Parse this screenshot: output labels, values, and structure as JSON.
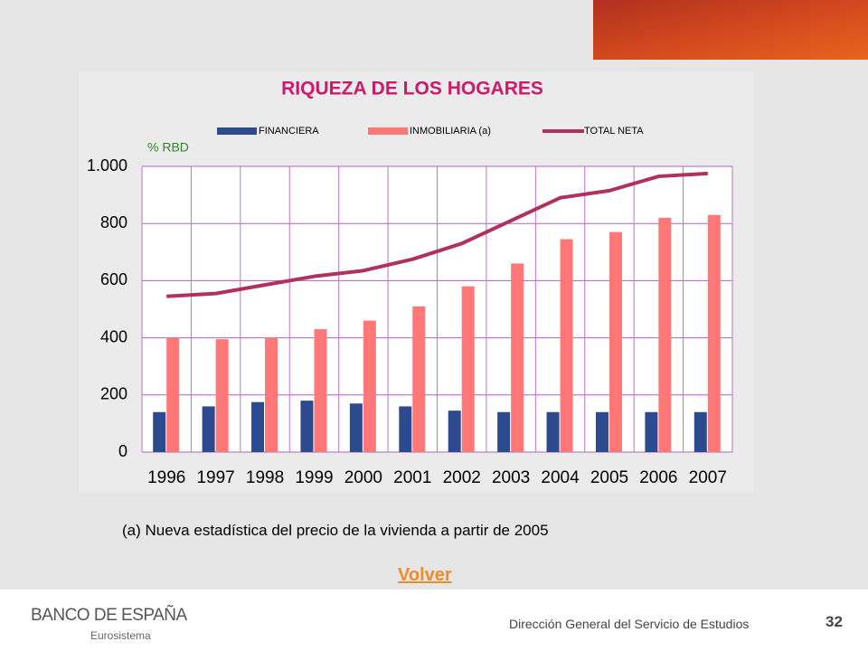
{
  "chart_data": {
    "type": "bar_line",
    "title": "RIQUEZA DE LOS HOGARES",
    "y_unit": "% RBD",
    "categories": [
      "1996",
      "1997",
      "1998",
      "1999",
      "2000",
      "2001",
      "2002",
      "2003",
      "2004",
      "2005",
      "2006",
      "2007"
    ],
    "series": [
      {
        "name": "FINANCIERA",
        "type": "bar",
        "color": "#2e4a8f",
        "values": [
          140,
          160,
          175,
          180,
          170,
          160,
          145,
          140,
          140,
          140,
          140,
          140
        ]
      },
      {
        "name": "INMOBILIARIA (a)",
        "type": "bar",
        "color": "#ff7777",
        "values": [
          400,
          395,
          400,
          430,
          460,
          510,
          580,
          660,
          745,
          770,
          820,
          830
        ]
      },
      {
        "name": "TOTAL NETA",
        "type": "line",
        "color": "#b03060",
        "values": [
          545,
          555,
          585,
          615,
          635,
          675,
          730,
          810,
          890,
          915,
          965,
          975
        ]
      }
    ],
    "ylim": [
      0,
      1000
    ],
    "yticks": [
      0,
      200,
      400,
      600,
      800,
      {
        "value": 1000,
        "label": "1.000"
      }
    ],
    "grid": true,
    "legend": "top"
  },
  "footnote": "(a) Nueva estadística del precio de la vivienda a partir de 2005",
  "link": "Volver",
  "footer": {
    "logo": "BANCO DE ESPAÑA",
    "logo_sub": "Eurosistema",
    "department": "Dirección General del Servicio de Estudios",
    "page": "32"
  }
}
